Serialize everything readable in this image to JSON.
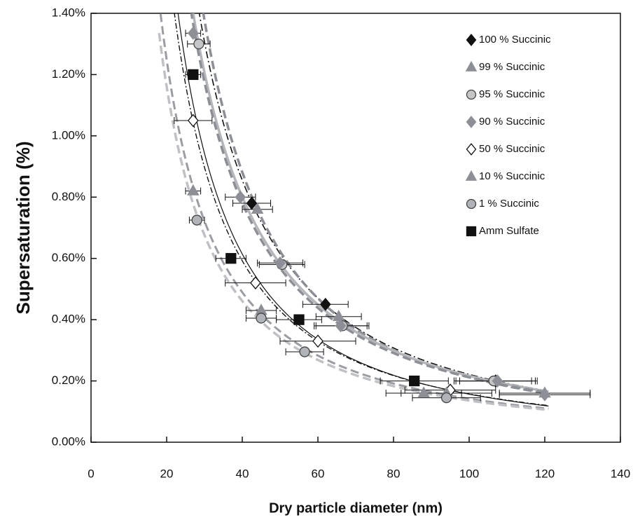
{
  "chart_data": {
    "type": "scatter",
    "y_label": "Supersaturation (%)",
    "x_label": "Dry particle diameter (nm)",
    "xlim": [
      0,
      140
    ],
    "xticks": [
      0,
      20,
      40,
      60,
      80,
      100,
      120,
      140
    ],
    "ylim": [
      0,
      1.4
    ],
    "yticks": [
      {
        "value": 0,
        "label": "0.00%"
      },
      {
        "value": 0.2,
        "label": "0.20%"
      },
      {
        "value": 0.4,
        "label": "0.40%"
      },
      {
        "value": 0.6,
        "label": "0.60%"
      },
      {
        "value": 0.8,
        "label": "0.80%"
      },
      {
        "value": 1.0,
        "label": "1.00%"
      },
      {
        "value": 1.2,
        "label": "1.20%"
      },
      {
        "value": 1.4,
        "label": "1.40%"
      }
    ],
    "legend": "top-right",
    "series": [
      {
        "name": "100 % Succinic",
        "marker": "diamond",
        "color": "#111111",
        "line_color": "#111111",
        "line_dash": "10 4 2 4",
        "line_width": 1.6,
        "x": [
          42.5,
          62,
          107
        ],
        "values": [
          0.78,
          0.45,
          0.2
        ],
        "xerr": [
          5,
          6,
          11
        ]
      },
      {
        "name": "99 % Succinic",
        "marker": "triangle",
        "color": "#8c9096",
        "line_color": "#8c9096",
        "line_dash": "12 6",
        "line_width": 3.5,
        "x": [
          44,
          65.5,
          120
        ],
        "values": [
          0.76,
          0.41,
          0.16
        ],
        "xerr": [
          4,
          6,
          12
        ]
      },
      {
        "name": "95 % Succinic",
        "marker": "circle",
        "color": "#c4c6c8",
        "line_color": "#b4b6b9",
        "line_dash": "",
        "line_width": 3.5,
        "x": [
          28.5,
          50.5,
          66.5,
          106.5
        ],
        "values": [
          1.3,
          0.58,
          0.38,
          0.2
        ],
        "xerr": [
          3,
          6,
          7,
          10
        ]
      },
      {
        "name": "90 % Succinic",
        "marker": "diamond",
        "color": "#8c9096",
        "line_color": "#8c9096",
        "line_dash": "12 6",
        "line_width": 3.5,
        "x": [
          27,
          39.5,
          50,
          66,
          107.5,
          120
        ],
        "values": [
          1.335,
          0.8,
          0.585,
          0.38,
          0.2,
          0.155
        ],
        "xerr": [
          2,
          4,
          6,
          7,
          10,
          12
        ]
      },
      {
        "name": "50 % Succinic",
        "marker": "diamond-open",
        "color": "#ffffff",
        "line_color": "#111111",
        "line_dash": "8 3 2 3",
        "line_width": 1.4,
        "x": [
          27,
          43.5,
          60,
          95
        ],
        "values": [
          1.05,
          0.52,
          0.33,
          0.17
        ],
        "xerr": [
          5,
          8,
          10,
          12
        ]
      },
      {
        "name": "10 % Succinic",
        "marker": "triangle",
        "color": "#8c9096",
        "line_color": "#9a9da2",
        "line_dash": "12 6",
        "line_width": 3,
        "x": [
          27,
          45,
          88,
          94
        ],
        "values": [
          0.82,
          0.43,
          0.16,
          0.16
        ],
        "xerr": [
          2,
          4,
          10,
          12
        ]
      },
      {
        "name": "1 % Succinic",
        "marker": "circle",
        "color": "#b0b3b7",
        "line_color": "#bfc1c4",
        "line_dash": "12 6",
        "line_width": 3.5,
        "x": [
          28,
          45,
          56.5,
          94
        ],
        "values": [
          0.725,
          0.405,
          0.295,
          0.145
        ],
        "xerr": [
          2,
          4,
          5,
          9
        ]
      },
      {
        "name": "Amm Sulfate",
        "marker": "square",
        "color": "#111111",
        "line_color": "#111111",
        "line_dash": "",
        "line_width": 1.2,
        "x": [
          27,
          37,
          55,
          85.5
        ],
        "values": [
          1.2,
          0.6,
          0.4,
          0.2
        ],
        "xerr": [
          2,
          4,
          6,
          9
        ]
      }
    ]
  }
}
